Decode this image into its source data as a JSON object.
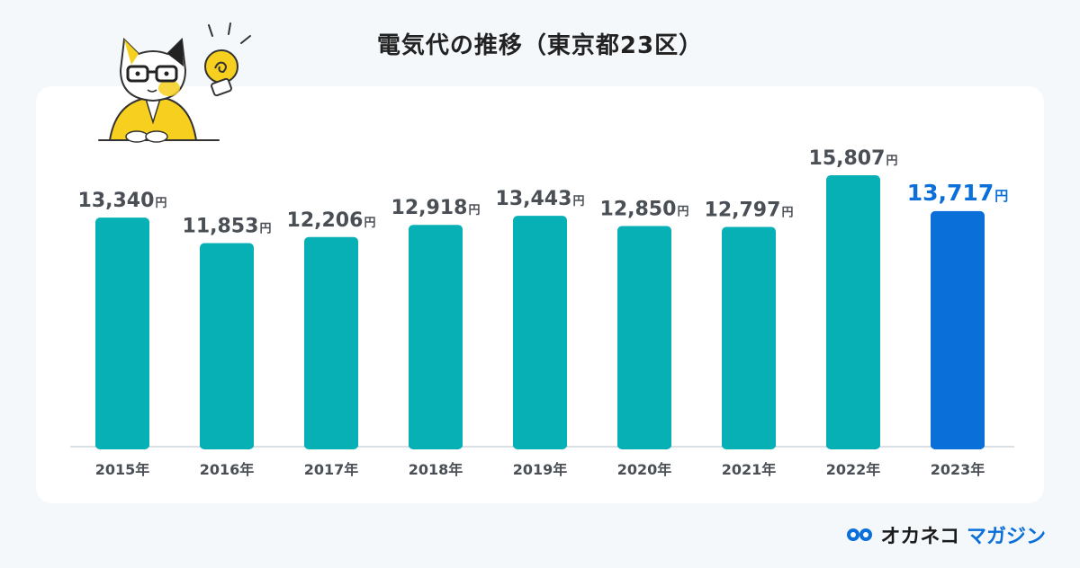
{
  "title": "電気代の推移（東京都23区）",
  "brand": {
    "name_part1": "オカネコ",
    "name_part2": "マガジン",
    "logo_icon": "owl-eyes-icon"
  },
  "mascot": {
    "icon": "cat-with-glasses-and-lightbulb-icon"
  },
  "colors": {
    "bar": "#06b0b5",
    "highlight_bar": "#0a6fd9",
    "label": "#4a4f55",
    "highlight_label": "#0a6fd9",
    "baseline": "#cfd6dc"
  },
  "chart_data": {
    "type": "bar",
    "title": "電気代の推移（東京都23区）",
    "categories": [
      "2015年",
      "2016年",
      "2017年",
      "2018年",
      "2019年",
      "2020年",
      "2021年",
      "2022年",
      "2023年"
    ],
    "values": [
      13340,
      11853,
      12206,
      12918,
      13443,
      12850,
      12797,
      15807,
      13717
    ],
    "value_labels": [
      "13,340",
      "11,853",
      "12,206",
      "12,918",
      "13,443",
      "12,850",
      "12,797",
      "15,807",
      "13,717"
    ],
    "unit": "円",
    "highlight_index": 8,
    "xlabel": "",
    "ylabel": "",
    "ylim": [
      0,
      15807
    ],
    "grid": false,
    "legend": "none"
  }
}
